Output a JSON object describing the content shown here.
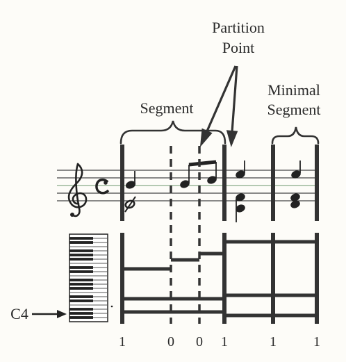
{
  "labels": {
    "partition_point_line1": "Partition",
    "partition_point_line2": "Point",
    "minimal_segment_line1": "Minimal",
    "minimal_segment_line2": "Segment",
    "segment": "Segment",
    "c4": "C4"
  },
  "staff": {
    "clef": "treble",
    "time_signature": "c"
  },
  "boundary_values": [
    "1",
    "0",
    "0",
    "1",
    "1",
    "1"
  ]
}
